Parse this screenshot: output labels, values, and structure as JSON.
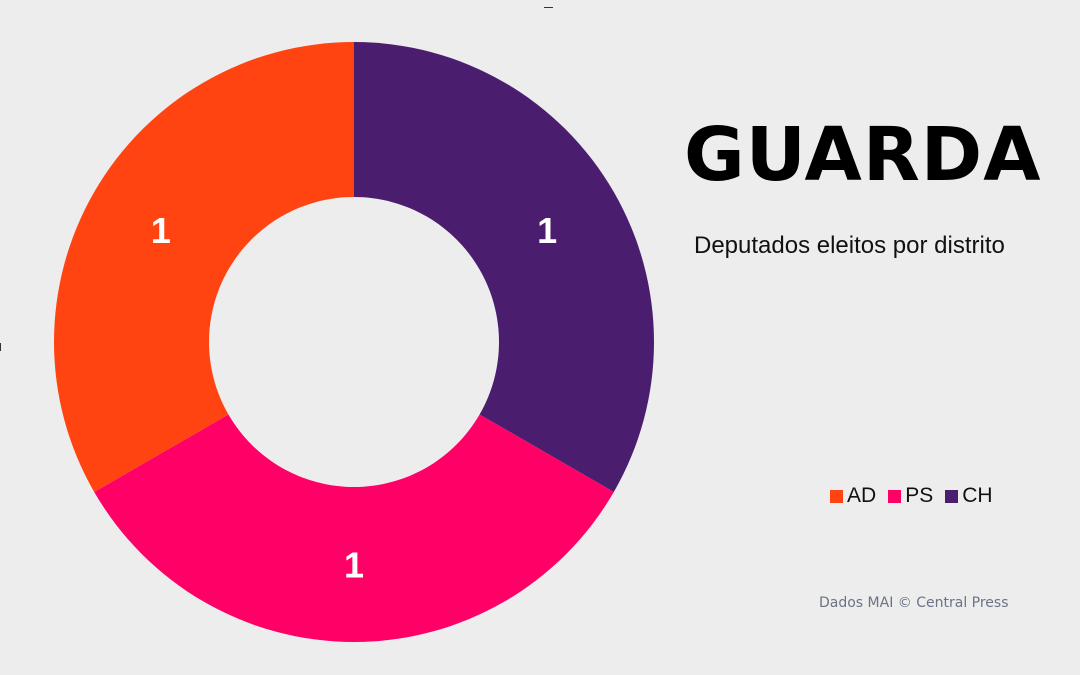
{
  "chart_data": {
    "type": "pie",
    "donut": true,
    "title": "GUARDA",
    "subtitle": "Deputados eleitos por distrito",
    "categories": [
      "AD",
      "PS",
      "CH"
    ],
    "values": [
      1,
      1,
      1
    ],
    "data_labels": [
      "1",
      "1",
      "1"
    ],
    "colors": [
      "#ff4411",
      "#ff0066",
      "#4b1d6e"
    ],
    "legend": {
      "placement": "right",
      "entries": [
        "AD",
        "PS",
        "CH"
      ]
    },
    "source": "Dados MAI  © Central Press"
  }
}
